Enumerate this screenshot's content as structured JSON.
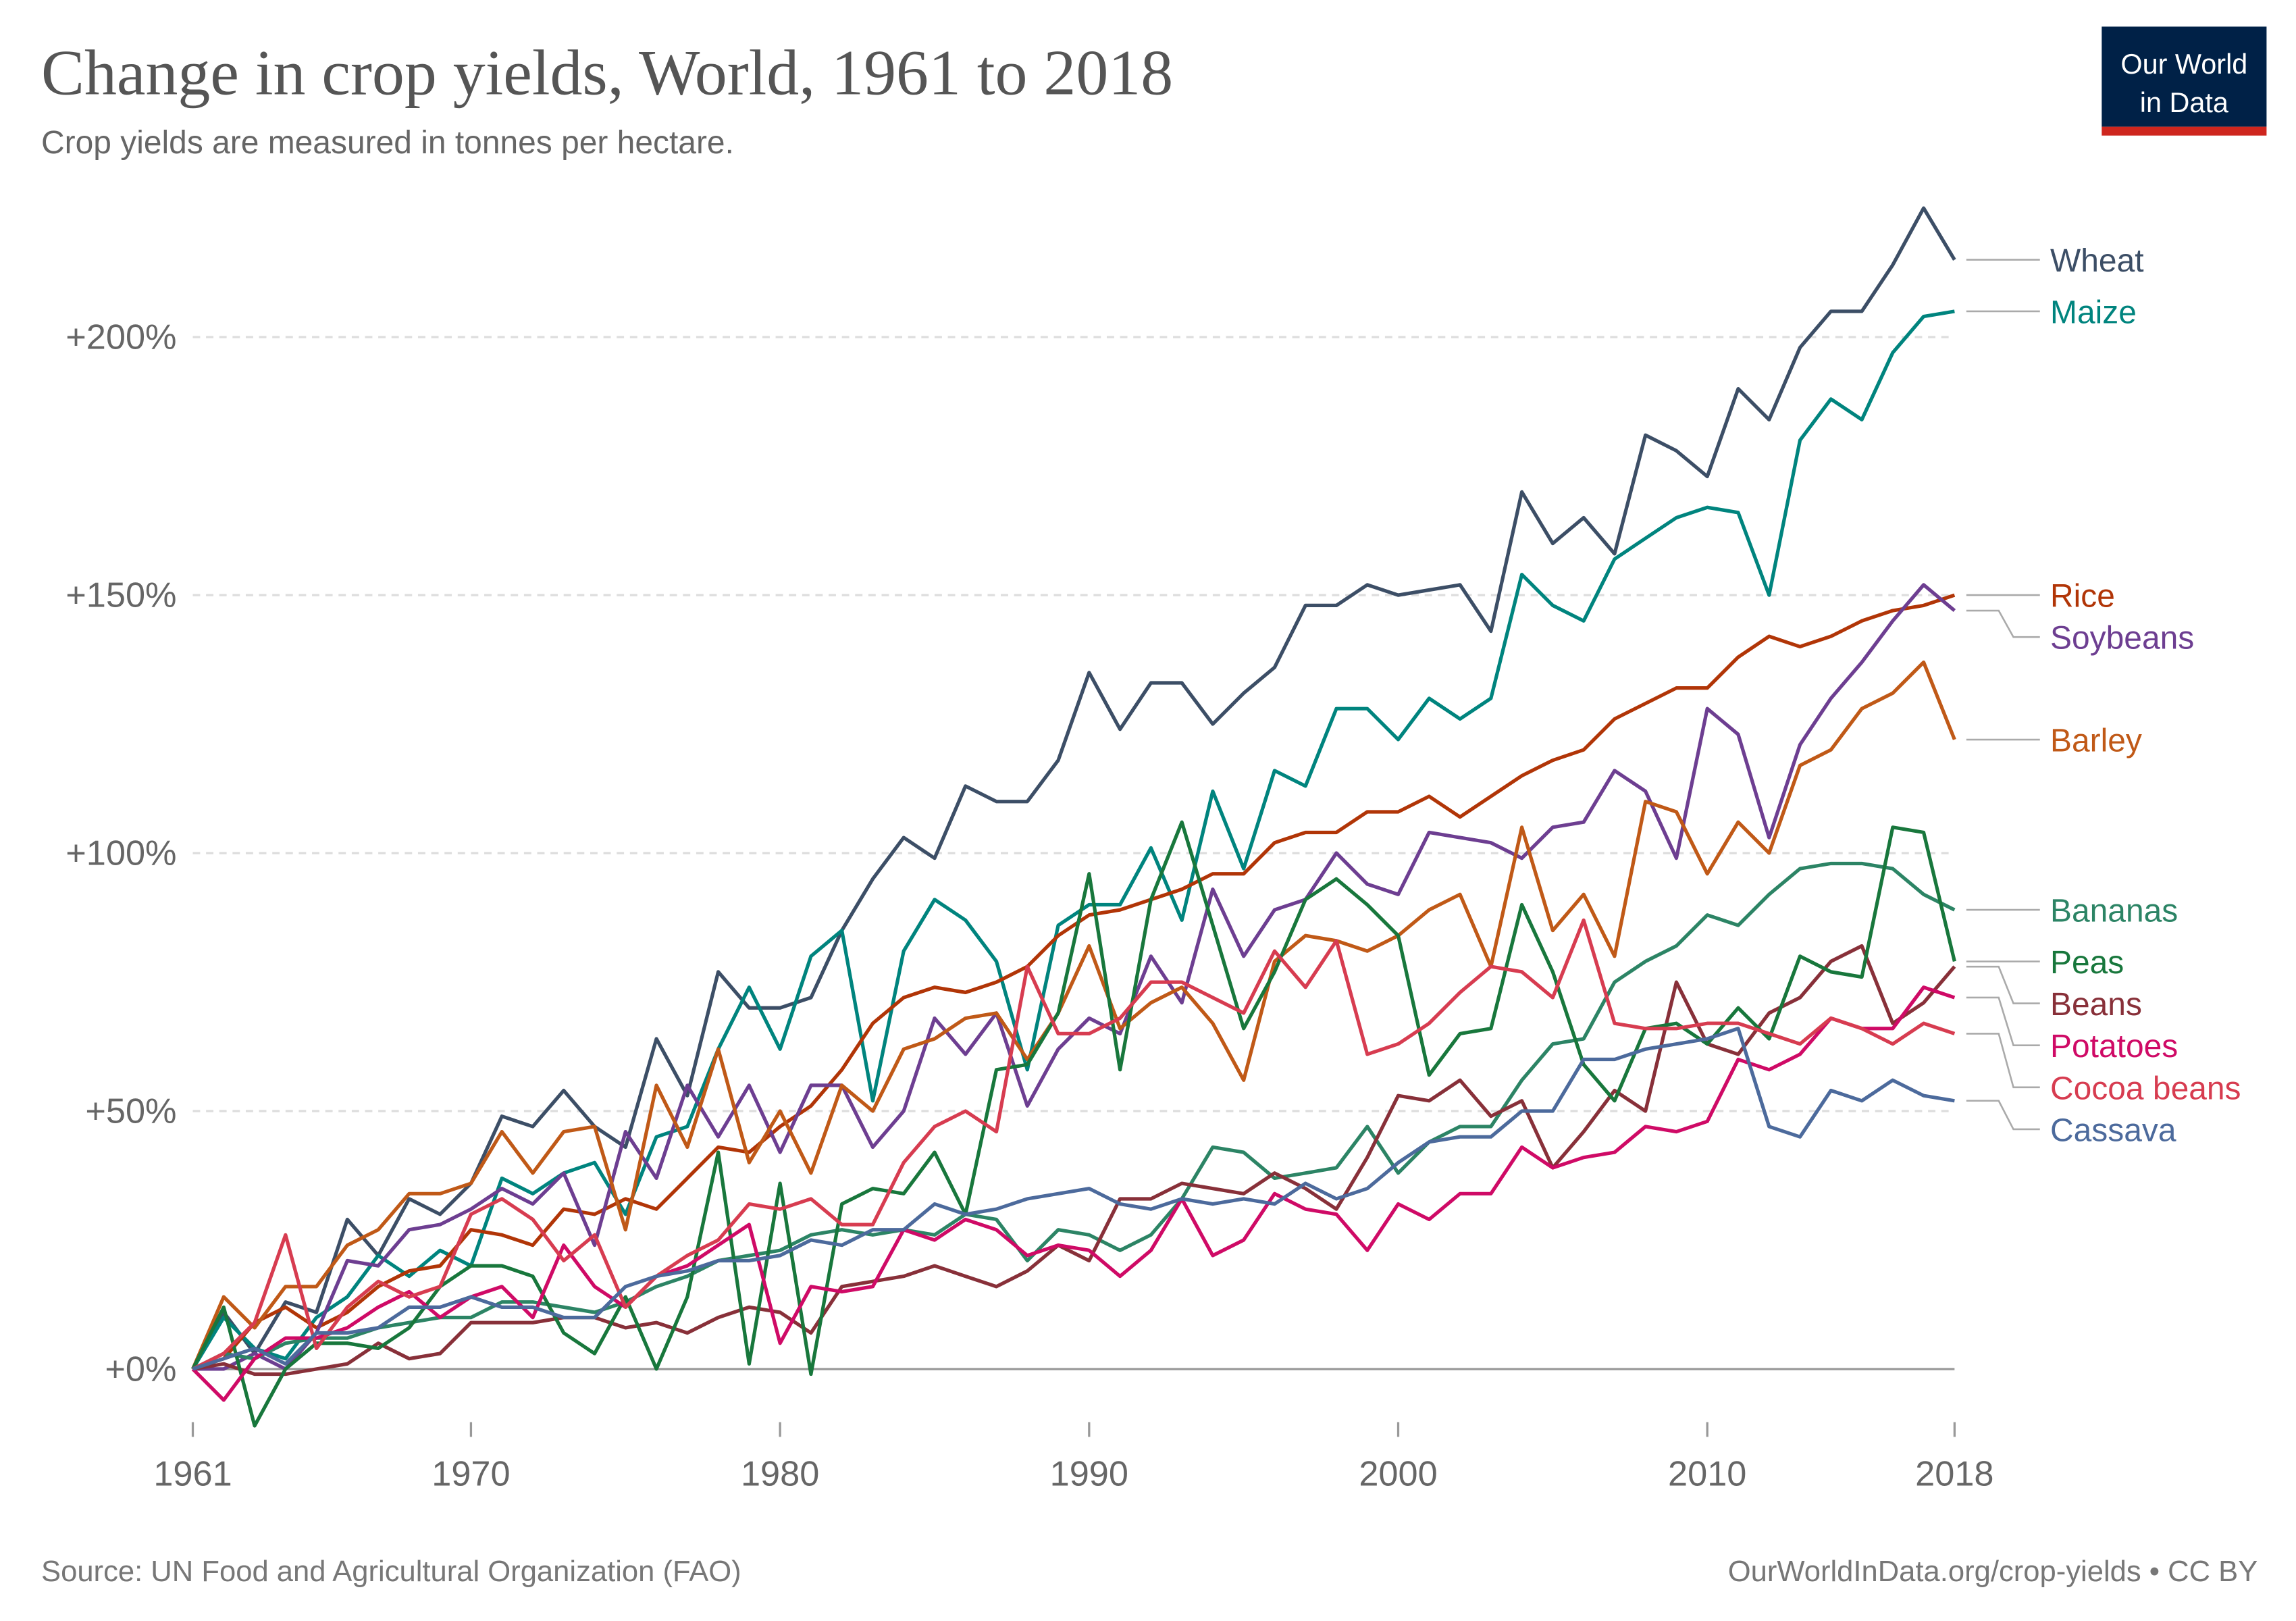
{
  "chart_data": {
    "type": "line",
    "title": "Change in crop yields, World, 1961 to 2018",
    "subtitle": "Crop yields are measured in tonnes per hectare.",
    "logo": [
      "Our World",
      "in Data"
    ],
    "source": "Source: UN Food and Agricultural Organization (FAO)",
    "credit": "OurWorldInData.org/crop-yields • CC BY",
    "x": [
      1961,
      1962,
      1963,
      1964,
      1965,
      1966,
      1967,
      1968,
      1969,
      1970,
      1971,
      1972,
      1973,
      1974,
      1975,
      1976,
      1977,
      1978,
      1979,
      1980,
      1981,
      1982,
      1983,
      1984,
      1985,
      1986,
      1987,
      1988,
      1989,
      1990,
      1991,
      1992,
      1993,
      1994,
      1995,
      1996,
      1997,
      1998,
      1999,
      2000,
      2001,
      2002,
      2003,
      2004,
      2005,
      2006,
      2007,
      2008,
      2009,
      2010,
      2011,
      2012,
      2013,
      2014,
      2015,
      2016,
      2017,
      2018
    ],
    "xlim": [
      1961,
      2018
    ],
    "xticks": [
      1961,
      1970,
      1980,
      1990,
      2000,
      2010,
      2018
    ],
    "ylim": [
      -12,
      228
    ],
    "yticks": [
      {
        "value": 0,
        "label": "+0%"
      },
      {
        "value": 50,
        "label": "+50%"
      },
      {
        "value": 100,
        "label": "+100%"
      },
      {
        "value": 150,
        "label": "+150%"
      },
      {
        "value": 200,
        "label": "+200%"
      }
    ],
    "grid": true,
    "series": [
      {
        "name": "Wheat",
        "color": "#3c4e66",
        "values": [
          0,
          11,
          3,
          13,
          11,
          29,
          22,
          33,
          30,
          36,
          49,
          47,
          54,
          47,
          43,
          64,
          53,
          77,
          70,
          70,
          72,
          85,
          95,
          103,
          99,
          113,
          110,
          110,
          118,
          135,
          124,
          133,
          133,
          125,
          131,
          136,
          148,
          148,
          152,
          150,
          151,
          152,
          143,
          170,
          160,
          165,
          158,
          181,
          178,
          173,
          190,
          184,
          198,
          205,
          205,
          214,
          225,
          215
        ]
      },
      {
        "name": "Maize",
        "color": "#00847e",
        "values": [
          0,
          10,
          4,
          2,
          10,
          14,
          22,
          18,
          23,
          20,
          37,
          34,
          38,
          40,
          30,
          45,
          47,
          62,
          74,
          62,
          80,
          85,
          52,
          81,
          91,
          87,
          79,
          58,
          86,
          90,
          90,
          101,
          87,
          112,
          97,
          116,
          113,
          128,
          128,
          122,
          130,
          126,
          130,
          154,
          148,
          145,
          157,
          161,
          165,
          167,
          166,
          150,
          180,
          188,
          184,
          197,
          204,
          205
        ]
      },
      {
        "name": "Rice",
        "color": "#b13507",
        "values": [
          0,
          2,
          9,
          12,
          8,
          11,
          16,
          19,
          20,
          27,
          26,
          24,
          31,
          30,
          33,
          31,
          37,
          43,
          42,
          47,
          51,
          58,
          67,
          72,
          74,
          73,
          75,
          78,
          84,
          88,
          89,
          91,
          93,
          96,
          96,
          102,
          104,
          104,
          108,
          108,
          111,
          107,
          111,
          115,
          118,
          120,
          126,
          129,
          132,
          132,
          138,
          142,
          140,
          142,
          145,
          147,
          148,
          150
        ]
      },
      {
        "name": "Soybeans",
        "color": "#6d3e91",
        "values": [
          0,
          0,
          3,
          0,
          7,
          21,
          20,
          27,
          28,
          31,
          35,
          32,
          38,
          24,
          46,
          37,
          55,
          45,
          55,
          42,
          55,
          55,
          43,
          50,
          68,
          61,
          69,
          51,
          62,
          68,
          65,
          80,
          71,
          93,
          80,
          89,
          91,
          100,
          94,
          92,
          104,
          103,
          102,
          99,
          105,
          106,
          116,
          112,
          99,
          128,
          123,
          103,
          121,
          130,
          137,
          145,
          152,
          147
        ]
      },
      {
        "name": "Barley",
        "color": "#c05917",
        "values": [
          0,
          14,
          8,
          16,
          16,
          24,
          27,
          34,
          34,
          36,
          46,
          38,
          46,
          47,
          27,
          55,
          43,
          62,
          40,
          50,
          38,
          55,
          50,
          62,
          64,
          68,
          69,
          60,
          69,
          82,
          66,
          71,
          74,
          67,
          56,
          79,
          84,
          83,
          81,
          84,
          89,
          92,
          78,
          105,
          85,
          92,
          80,
          110,
          108,
          96,
          106,
          100,
          117,
          120,
          128,
          131,
          137,
          122
        ]
      },
      {
        "name": "Bananas",
        "color": "#2c8465",
        "values": [
          0,
          3,
          2,
          5,
          6,
          6,
          8,
          9,
          10,
          10,
          13,
          13,
          12,
          11,
          13,
          16,
          18,
          21,
          22,
          23,
          26,
          27,
          26,
          27,
          26,
          30,
          29,
          21,
          27,
          26,
          23,
          26,
          33,
          43,
          42,
          37,
          38,
          39,
          47,
          38,
          44,
          47,
          47,
          56,
          63,
          64,
          75,
          79,
          82,
          88,
          86,
          92,
          97,
          98,
          98,
          97,
          92,
          89
        ]
      },
      {
        "name": "Beans",
        "color": "#883039",
        "values": [
          0,
          1,
          -1,
          -1,
          0,
          1,
          5,
          2,
          3,
          9,
          9,
          9,
          10,
          10,
          8,
          9,
          7,
          10,
          12,
          11,
          7,
          16,
          17,
          18,
          20,
          18,
          16,
          19,
          24,
          21,
          33,
          33,
          36,
          35,
          34,
          38,
          35,
          31,
          41,
          53,
          52,
          56,
          49,
          52,
          39,
          46,
          54,
          50,
          75,
          63,
          61,
          69,
          72,
          79,
          82,
          67,
          71,
          78
        ]
      },
      {
        "name": "Peas",
        "color": "#18773c",
        "values": [
          0,
          12,
          -11,
          0,
          5,
          5,
          4,
          8,
          16,
          20,
          20,
          18,
          7,
          3,
          14,
          0,
          14,
          42,
          1,
          36,
          -1,
          32,
          35,
          34,
          42,
          30,
          58,
          59,
          69,
          96,
          58,
          91,
          106,
          86,
          66,
          77,
          91,
          95,
          90,
          84,
          57,
          65,
          66,
          90,
          77,
          59,
          52,
          66,
          67,
          63,
          70,
          64,
          80,
          77,
          76,
          105,
          104,
          79
        ]
      },
      {
        "name": "Potatoes",
        "color": "#cf0a66",
        "values": [
          0,
          -6,
          2,
          6,
          6,
          8,
          12,
          15,
          10,
          14,
          16,
          10,
          24,
          16,
          12,
          18,
          20,
          24,
          28,
          5,
          16,
          15,
          16,
          27,
          25,
          29,
          27,
          22,
          24,
          23,
          18,
          23,
          33,
          22,
          25,
          34,
          31,
          30,
          23,
          32,
          29,
          34,
          34,
          43,
          39,
          41,
          42,
          47,
          46,
          48,
          60,
          58,
          61,
          68,
          66,
          66,
          74,
          72
        ]
      },
      {
        "name": "Cocoa beans",
        "color": "#d73c50",
        "values": [
          0,
          3,
          9,
          26,
          4,
          12,
          17,
          14,
          16,
          30,
          33,
          29,
          21,
          26,
          12,
          18,
          22,
          25,
          32,
          31,
          33,
          28,
          28,
          40,
          47,
          50,
          46,
          78,
          65,
          65,
          68,
          75,
          75,
          72,
          69,
          81,
          74,
          83,
          61,
          63,
          67,
          73,
          78,
          77,
          72,
          87,
          67,
          66,
          66,
          67,
          67,
          65,
          63,
          68,
          66,
          63,
          67,
          65
        ]
      },
      {
        "name": "Cassava",
        "color": "#4c6a9c",
        "values": [
          0,
          2,
          4,
          1,
          7,
          7,
          8,
          12,
          12,
          14,
          12,
          12,
          10,
          10,
          16,
          18,
          19,
          21,
          21,
          22,
          25,
          24,
          27,
          27,
          32,
          30,
          31,
          33,
          34,
          35,
          32,
          31,
          33,
          32,
          33,
          32,
          36,
          33,
          35,
          40,
          44,
          45,
          45,
          50,
          50,
          60,
          60,
          62,
          63,
          64,
          66,
          47,
          45,
          54,
          52,
          56,
          53,
          52
        ]
      }
    ]
  }
}
